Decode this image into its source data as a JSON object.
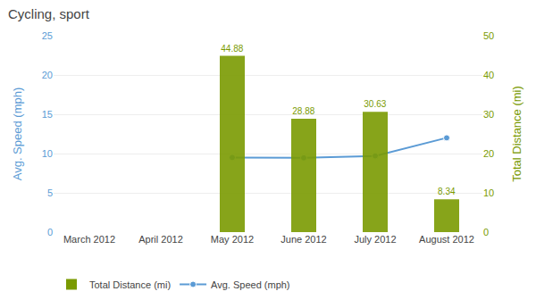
{
  "chart_data": {
    "type": "bar",
    "title": "Cycling, sport",
    "categories": [
      "March 2012",
      "April 2012",
      "May 2012",
      "June 2012",
      "July 2012",
      "August 2012"
    ],
    "series": [
      {
        "name": "Total Distance (mi)",
        "type": "bar",
        "axis": "y2",
        "color": "#7a9a01",
        "values": [
          0,
          0,
          44.88,
          28.88,
          30.63,
          8.34
        ],
        "value_labels": [
          null,
          null,
          "44.88",
          "28.88",
          "30.63",
          "8.34"
        ]
      },
      {
        "name": "Avg. Speed (mph)",
        "type": "line",
        "axis": "y",
        "color": "#5b9bd5",
        "marker": "circle",
        "values": [
          null,
          null,
          9.5,
          9.45,
          9.7,
          12.0
        ]
      }
    ],
    "y_label": "Avg. Speed (mph)",
    "y2_label": "Total Distance (mi)",
    "ylim": [
      0,
      25
    ],
    "yticks": [
      0,
      5,
      10,
      15,
      20,
      25
    ],
    "y2lim": [
      0,
      50
    ],
    "y2ticks": [
      0,
      10,
      20,
      30,
      40,
      50
    ],
    "grid": true,
    "legend": "bottom"
  }
}
